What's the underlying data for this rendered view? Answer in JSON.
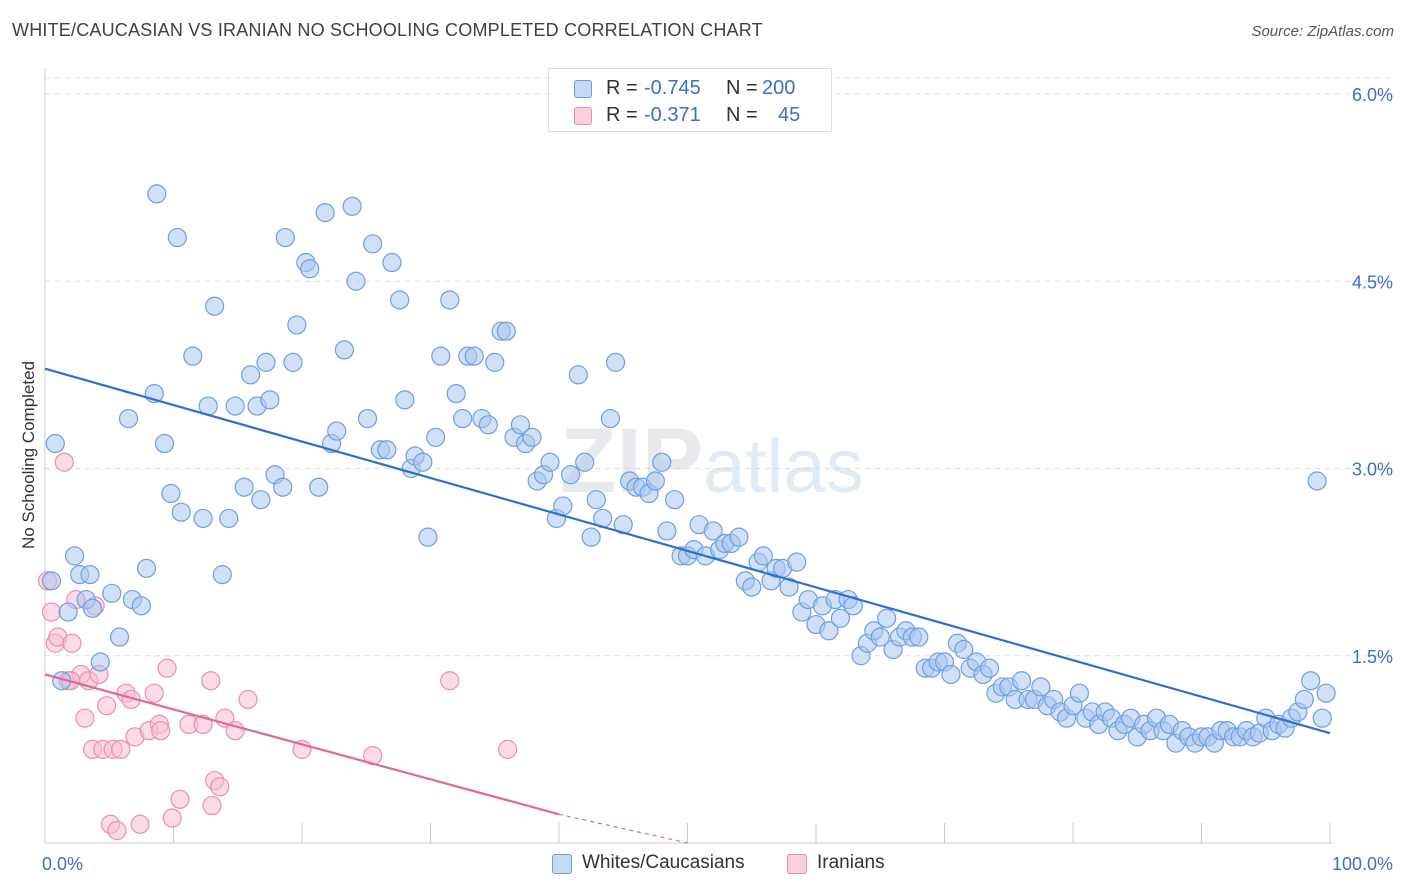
{
  "title": "WHITE/CAUCASIAN VS IRANIAN NO SCHOOLING COMPLETED CORRELATION CHART",
  "source": "Source: ZipAtlas.com",
  "watermark": "ZIPatlas",
  "legend": {
    "rows": [
      {
        "r_label": "R =",
        "r_value": "-0.745",
        "n_label": "N =",
        "n_value": "200",
        "color": "#a9c6f0"
      },
      {
        "r_label": "R =",
        "r_value": "-0.371",
        "n_label": "N =",
        "n_value": "45",
        "color": "#f5b6c8"
      }
    ]
  },
  "bottom_legend": [
    {
      "label": "Whites/Caucasians",
      "color": "#a9c6f0"
    },
    {
      "label": "Iranians",
      "color": "#f5b6c8"
    }
  ],
  "chart_data": {
    "type": "scatter",
    "xlabel": "",
    "ylabel": "No Schooling Completed",
    "xlim": [
      0,
      100
    ],
    "ylim": [
      0,
      6.0
    ],
    "x_tick_labels": [
      "0.0%",
      "100.0%"
    ],
    "y_tick_labels": [
      "1.5%",
      "3.0%",
      "4.5%",
      "6.0%"
    ],
    "y_ticks": [
      1.5,
      3.0,
      4.5,
      6.0
    ],
    "grid": true,
    "colors": {
      "blue_fill": "#a9c6f0",
      "blue_stroke": "#6f9fe0",
      "blue_line": "#2f6fd0",
      "pink_fill": "#f7c0cf",
      "pink_stroke": "#eb8fab",
      "pink_line": "#e06a93",
      "axis_text": "#3a6fcc"
    },
    "series": [
      {
        "name": "Whites/Caucasians",
        "trend": {
          "x0": 0,
          "y0": 3.8,
          "x1": 100,
          "y1": 0.88
        },
        "points": [
          [
            0.5,
            2.1
          ],
          [
            0.8,
            3.2
          ],
          [
            1.3,
            1.3
          ],
          [
            1.8,
            1.85
          ],
          [
            2.3,
            2.3
          ],
          [
            2.7,
            2.15
          ],
          [
            3.2,
            1.95
          ],
          [
            3.5,
            2.15
          ],
          [
            3.7,
            1.88
          ],
          [
            4.3,
            1.45
          ],
          [
            5.2,
            2.0
          ],
          [
            5.8,
            1.65
          ],
          [
            6.5,
            3.4
          ],
          [
            6.8,
            1.95
          ],
          [
            7.5,
            1.9
          ],
          [
            7.9,
            2.2
          ],
          [
            8.5,
            3.6
          ],
          [
            8.7,
            5.2
          ],
          [
            9.3,
            3.2
          ],
          [
            9.8,
            2.8
          ],
          [
            10.3,
            4.85
          ],
          [
            10.6,
            2.65
          ],
          [
            11.5,
            3.9
          ],
          [
            12.3,
            2.6
          ],
          [
            12.7,
            3.5
          ],
          [
            13.2,
            4.3
          ],
          [
            13.8,
            2.15
          ],
          [
            14.3,
            2.6
          ],
          [
            14.8,
            3.5
          ],
          [
            15.5,
            2.85
          ],
          [
            16.0,
            3.75
          ],
          [
            16.5,
            3.5
          ],
          [
            16.8,
            2.75
          ],
          [
            17.2,
            3.85
          ],
          [
            17.5,
            3.55
          ],
          [
            17.9,
            2.95
          ],
          [
            18.5,
            2.85
          ],
          [
            18.7,
            4.85
          ],
          [
            19.3,
            3.85
          ],
          [
            19.6,
            4.15
          ],
          [
            20.3,
            4.65
          ],
          [
            20.6,
            4.6
          ],
          [
            21.3,
            2.85
          ],
          [
            21.8,
            5.05
          ],
          [
            22.3,
            3.2
          ],
          [
            22.7,
            3.3
          ],
          [
            23.3,
            3.95
          ],
          [
            23.9,
            5.1
          ],
          [
            24.2,
            4.5
          ],
          [
            25.1,
            3.4
          ],
          [
            25.5,
            4.8
          ],
          [
            26.1,
            3.15
          ],
          [
            26.6,
            3.15
          ],
          [
            27.0,
            4.65
          ],
          [
            27.6,
            4.35
          ],
          [
            28.0,
            3.55
          ],
          [
            28.5,
            3.0
          ],
          [
            28.8,
            3.1
          ],
          [
            29.4,
            3.05
          ],
          [
            29.8,
            2.45
          ],
          [
            30.4,
            3.25
          ],
          [
            30.8,
            3.9
          ],
          [
            31.5,
            4.35
          ],
          [
            32.0,
            3.6
          ],
          [
            32.5,
            3.4
          ],
          [
            32.9,
            3.9
          ],
          [
            33.4,
            3.9
          ],
          [
            34.0,
            3.4
          ],
          [
            34.5,
            3.35
          ],
          [
            35.0,
            3.85
          ],
          [
            35.5,
            4.1
          ],
          [
            35.9,
            4.1
          ],
          [
            36.5,
            3.25
          ],
          [
            37.0,
            3.35
          ],
          [
            37.4,
            3.2
          ],
          [
            37.9,
            3.25
          ],
          [
            38.3,
            2.9
          ],
          [
            38.8,
            2.95
          ],
          [
            39.3,
            3.05
          ],
          [
            39.8,
            2.6
          ],
          [
            40.3,
            2.7
          ],
          [
            40.9,
            2.95
          ],
          [
            41.5,
            3.75
          ],
          [
            42.0,
            3.05
          ],
          [
            42.5,
            2.45
          ],
          [
            42.9,
            2.75
          ],
          [
            43.4,
            2.6
          ],
          [
            44.0,
            3.4
          ],
          [
            44.4,
            3.85
          ],
          [
            45.0,
            2.55
          ],
          [
            45.5,
            2.9
          ],
          [
            46.0,
            2.85
          ],
          [
            46.5,
            2.85
          ],
          [
            47.0,
            2.8
          ],
          [
            47.5,
            2.9
          ],
          [
            48.0,
            3.05
          ],
          [
            48.4,
            2.5
          ],
          [
            49.0,
            2.75
          ],
          [
            49.5,
            2.3
          ],
          [
            50.0,
            2.3
          ],
          [
            50.5,
            2.35
          ],
          [
            50.9,
            2.55
          ],
          [
            51.4,
            2.3
          ],
          [
            52.0,
            2.5
          ],
          [
            52.5,
            2.35
          ],
          [
            52.9,
            2.4
          ],
          [
            53.4,
            2.4
          ],
          [
            54.0,
            2.45
          ],
          [
            54.5,
            2.1
          ],
          [
            55.0,
            2.05
          ],
          [
            55.5,
            2.25
          ],
          [
            55.9,
            2.3
          ],
          [
            56.5,
            2.1
          ],
          [
            56.9,
            2.2
          ],
          [
            57.4,
            2.2
          ],
          [
            57.9,
            2.05
          ],
          [
            58.5,
            2.25
          ],
          [
            58.9,
            1.85
          ],
          [
            59.4,
            1.95
          ],
          [
            60.0,
            1.75
          ],
          [
            60.5,
            1.9
          ],
          [
            61.0,
            1.7
          ],
          [
            61.5,
            1.95
          ],
          [
            61.9,
            1.8
          ],
          [
            62.5,
            1.95
          ],
          [
            62.9,
            1.9
          ],
          [
            63.5,
            1.5
          ],
          [
            64.0,
            1.6
          ],
          [
            64.5,
            1.7
          ],
          [
            65.0,
            1.65
          ],
          [
            65.5,
            1.8
          ],
          [
            66.0,
            1.55
          ],
          [
            66.5,
            1.65
          ],
          [
            67.0,
            1.7
          ],
          [
            67.5,
            1.65
          ],
          [
            68.0,
            1.65
          ],
          [
            68.5,
            1.4
          ],
          [
            69.0,
            1.4
          ],
          [
            69.5,
            1.45
          ],
          [
            70.0,
            1.45
          ],
          [
            70.5,
            1.35
          ],
          [
            71.0,
            1.6
          ],
          [
            71.5,
            1.55
          ],
          [
            72.0,
            1.4
          ],
          [
            72.5,
            1.45
          ],
          [
            73.0,
            1.35
          ],
          [
            73.5,
            1.4
          ],
          [
            74.0,
            1.2
          ],
          [
            74.5,
            1.25
          ],
          [
            75.0,
            1.25
          ],
          [
            75.5,
            1.15
          ],
          [
            76.0,
            1.3
          ],
          [
            76.5,
            1.15
          ],
          [
            77.0,
            1.15
          ],
          [
            77.5,
            1.25
          ],
          [
            78.0,
            1.1
          ],
          [
            78.5,
            1.15
          ],
          [
            79.0,
            1.05
          ],
          [
            79.5,
            1.0
          ],
          [
            80.0,
            1.1
          ],
          [
            80.5,
            1.2
          ],
          [
            81.0,
            1.0
          ],
          [
            81.5,
            1.05
          ],
          [
            82.0,
            0.95
          ],
          [
            82.5,
            1.05
          ],
          [
            83.0,
            1.0
          ],
          [
            83.5,
            0.9
          ],
          [
            84.0,
            0.95
          ],
          [
            84.5,
            1.0
          ],
          [
            85.0,
            0.85
          ],
          [
            85.5,
            0.95
          ],
          [
            86.0,
            0.9
          ],
          [
            86.5,
            1.0
          ],
          [
            87.0,
            0.9
          ],
          [
            87.5,
            0.95
          ],
          [
            88.0,
            0.8
          ],
          [
            88.5,
            0.9
          ],
          [
            89.0,
            0.85
          ],
          [
            89.5,
            0.8
          ],
          [
            90.0,
            0.85
          ],
          [
            90.5,
            0.85
          ],
          [
            91.0,
            0.8
          ],
          [
            91.5,
            0.9
          ],
          [
            92.0,
            0.9
          ],
          [
            92.5,
            0.85
          ],
          [
            93.0,
            0.85
          ],
          [
            93.5,
            0.9
          ],
          [
            94.0,
            0.85
          ],
          [
            94.5,
            0.88
          ],
          [
            95.0,
            1.0
          ],
          [
            95.5,
            0.9
          ],
          [
            96.0,
            0.95
          ],
          [
            96.5,
            0.92
          ],
          [
            97.0,
            1.0
          ],
          [
            97.5,
            1.05
          ],
          [
            98.0,
            1.15
          ],
          [
            98.5,
            1.3
          ],
          [
            99.0,
            2.9
          ],
          [
            99.4,
            1.0
          ],
          [
            99.7,
            1.2
          ]
        ]
      },
      {
        "name": "Iranians",
        "trend": {
          "x0": 0,
          "y0": 1.35,
          "x1": 40,
          "y1": 0.23,
          "dash_to_x": 50,
          "dash_to_y": -0.05
        },
        "points": [
          [
            0.2,
            2.1
          ],
          [
            0.5,
            1.85
          ],
          [
            0.8,
            1.6
          ],
          [
            1.0,
            1.65
          ],
          [
            1.5,
            3.05
          ],
          [
            1.8,
            1.3
          ],
          [
            2.1,
            1.6
          ],
          [
            2.4,
            1.95
          ],
          [
            2.8,
            1.35
          ],
          [
            3.1,
            1.0
          ],
          [
            3.4,
            1.3
          ],
          [
            3.7,
            0.75
          ],
          [
            3.9,
            1.9
          ],
          [
            4.2,
            1.35
          ],
          [
            4.5,
            0.75
          ],
          [
            4.8,
            1.1
          ],
          [
            5.1,
            0.15
          ],
          [
            5.3,
            0.75
          ],
          [
            5.6,
            0.1
          ],
          [
            5.9,
            0.75
          ],
          [
            6.3,
            1.2
          ],
          [
            6.7,
            1.15
          ],
          [
            7.0,
            0.85
          ],
          [
            7.4,
            0.15
          ],
          [
            8.1,
            0.9
          ],
          [
            8.5,
            1.2
          ],
          [
            8.9,
            0.95
          ],
          [
            9.5,
            1.4
          ],
          [
            9.9,
            0.2
          ],
          [
            10.5,
            0.35
          ],
          [
            11.2,
            0.95
          ],
          [
            12.3,
            0.95
          ],
          [
            12.9,
            1.3
          ],
          [
            13.2,
            0.5
          ],
          [
            13.6,
            0.45
          ],
          [
            14.0,
            1.0
          ],
          [
            14.8,
            0.9
          ],
          [
            15.8,
            1.15
          ],
          [
            20.0,
            0.75
          ],
          [
            25.5,
            0.7
          ],
          [
            31.5,
            1.3
          ],
          [
            36.0,
            0.75
          ],
          [
            9.0,
            0.9
          ],
          [
            2.0,
            1.3
          ],
          [
            13.0,
            0.3
          ]
        ]
      }
    ]
  }
}
